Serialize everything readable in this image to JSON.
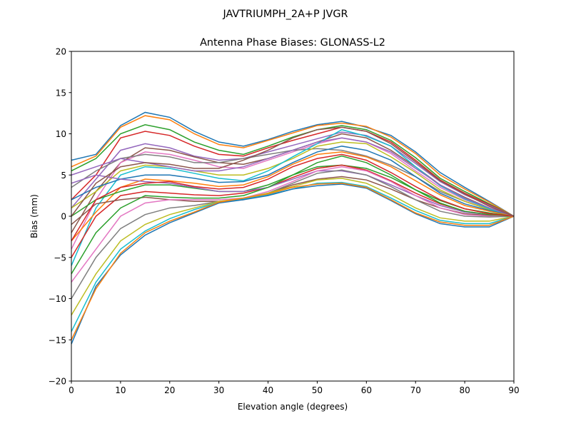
{
  "chart_data": {
    "type": "line",
    "suptitle": "JAVTRIUMPH_2A+P JVGR",
    "title": "Antenna Phase Biases: GLONASS-L2",
    "xlabel": "Elevation angle (degrees)",
    "ylabel": "Bias (mm)",
    "xlim": [
      0,
      90
    ],
    "ylim": [
      -20,
      20
    ],
    "xticks": [
      0,
      10,
      20,
      30,
      40,
      50,
      60,
      70,
      80,
      90
    ],
    "yticks": [
      -20,
      -15,
      -10,
      -5,
      0,
      5,
      10,
      15,
      20
    ],
    "ytick_labels": [
      "−20",
      "−15",
      "−10",
      "−5",
      "0",
      "5",
      "10",
      "15",
      "20"
    ],
    "grid": false,
    "legend": "none",
    "colors": [
      "#1f77b4",
      "#ff7f0e",
      "#2ca02c",
      "#d62728",
      "#9467bd",
      "#8c564b",
      "#e377c2",
      "#7f7f7f",
      "#bcbd22",
      "#17becf"
    ],
    "x": [
      0,
      5,
      10,
      15,
      20,
      25,
      30,
      35,
      40,
      45,
      50,
      55,
      60,
      65,
      70,
      75,
      80,
      85,
      90
    ],
    "series": [
      {
        "values": [
          6.8,
          7.5,
          11,
          12.6,
          12,
          10.3,
          9,
          8.5,
          9.3,
          10.3,
          11.1,
          11.5,
          10.8,
          9.8,
          7.8,
          5.3,
          3.5,
          1.8,
          0
        ]
      },
      {
        "values": [
          6,
          7.3,
          10.8,
          12.2,
          11.7,
          10,
          8.7,
          8.3,
          9.2,
          10.1,
          11,
          11.3,
          10.9,
          9.6,
          7.6,
          5,
          3.3,
          1.7,
          0
        ]
      },
      {
        "values": [
          5.5,
          7,
          10,
          11.1,
          10.5,
          9,
          8,
          7.5,
          8.5,
          9.6,
          10.5,
          11,
          10.5,
          9.2,
          7.1,
          4.6,
          3,
          1.5,
          0
        ]
      },
      {
        "values": [
          2,
          5,
          9.5,
          10.3,
          9.8,
          8.5,
          7.5,
          7.3,
          8.3,
          9.2,
          10,
          10.8,
          10.3,
          9,
          6.8,
          4.4,
          2.8,
          1.4,
          0
        ]
      },
      {
        "values": [
          1,
          4.5,
          8,
          8.8,
          8.3,
          7.3,
          6.8,
          7,
          7.8,
          8.6,
          9.4,
          10.2,
          9.8,
          8.5,
          6.4,
          4.2,
          2.6,
          1.3,
          0
        ]
      },
      {
        "values": [
          -2,
          3,
          6.5,
          8.3,
          8,
          7.2,
          6.5,
          6.3,
          7,
          8,
          9,
          10,
          9.5,
          8,
          6,
          3.8,
          2.3,
          1,
          0
        ]
      },
      {
        "values": [
          -4,
          2,
          6.5,
          7.8,
          7.5,
          6.8,
          6,
          5.8,
          6.8,
          7.8,
          8.8,
          9.5,
          9,
          7.6,
          5.5,
          3.5,
          2,
          0.9,
          0
        ]
      },
      {
        "values": [
          3.5,
          5.5,
          7,
          7.5,
          7.2,
          6.5,
          6.5,
          7,
          7.5,
          8,
          8.2,
          8,
          7.3,
          6.2,
          4.8,
          3,
          1.8,
          0.8,
          0
        ]
      },
      {
        "values": [
          1,
          3,
          5.5,
          6.2,
          6,
          5.5,
          5,
          5,
          5.8,
          7,
          8.5,
          9,
          8.8,
          7.2,
          5.3,
          3.2,
          1.8,
          0.8,
          0
        ]
      },
      {
        "values": [
          -6,
          1,
          5,
          6,
          5.8,
          5.2,
          4.6,
          4.3,
          5.5,
          7.2,
          8.8,
          10.5,
          9.7,
          8.5,
          6,
          3.7,
          2.1,
          0.9,
          0
        ]
      },
      {
        "values": [
          2,
          3.5,
          4.5,
          5,
          5,
          4.6,
          4.1,
          4.2,
          5,
          6.5,
          7.8,
          8.5,
          8,
          6.8,
          4.8,
          2.8,
          1.5,
          0.7,
          0
        ]
      },
      {
        "values": [
          -3,
          0.5,
          3.5,
          4.5,
          4.3,
          4,
          3.6,
          3.8,
          4.8,
          6.3,
          7.5,
          7.8,
          7.2,
          6,
          4.3,
          2.6,
          1.3,
          0.6,
          0
        ]
      },
      {
        "values": [
          0,
          2,
          3,
          3.8,
          3.8,
          3.4,
          3,
          3,
          3.8,
          5,
          6,
          6.2,
          5.8,
          4.7,
          3.2,
          1.9,
          0.9,
          0.4,
          0
        ]
      },
      {
        "values": [
          -5,
          0,
          2.5,
          3,
          2.8,
          2.6,
          2.5,
          2.8,
          3.5,
          4.7,
          5.8,
          6.2,
          5.6,
          4.3,
          2.8,
          1.5,
          0.6,
          0.2,
          0
        ]
      },
      {
        "values": [
          4,
          5,
          4.5,
          4.2,
          4,
          3.5,
          3,
          3,
          3.5,
          4.5,
          5.5,
          5.5,
          5,
          3.8,
          2.5,
          1.3,
          0.5,
          0.2,
          0
        ]
      },
      {
        "values": [
          -1,
          1.5,
          2,
          2.3,
          2,
          1.8,
          1.8,
          2,
          2.8,
          3.8,
          4.5,
          4.8,
          4.4,
          3.3,
          2,
          1,
          0.3,
          0.1,
          0
        ]
      },
      {
        "values": [
          -8,
          -4,
          0,
          1.6,
          2,
          2,
          2,
          2.2,
          3,
          4.2,
          5.5,
          6,
          5.5,
          4.2,
          2.5,
          1,
          0.2,
          0,
          0
        ]
      },
      {
        "values": [
          -10,
          -5,
          -1.5,
          0.2,
          1,
          1.3,
          1.8,
          2,
          2.8,
          4,
          5.2,
          5.6,
          5,
          3.6,
          2,
          0.6,
          0,
          -0.1,
          0
        ]
      },
      {
        "values": [
          -12,
          -7,
          -3,
          -1,
          0.2,
          1,
          1.8,
          2.2,
          2.8,
          3.6,
          4.4,
          4.6,
          4,
          2.6,
          1,
          -0.2,
          -0.6,
          -0.6,
          0
        ]
      },
      {
        "values": [
          -14,
          -8,
          -4,
          -1.8,
          -0.3,
          0.8,
          1.7,
          2.1,
          2.6,
          3.3,
          4,
          4.1,
          3.6,
          2.2,
          0.7,
          -0.5,
          -0.9,
          -0.9,
          0
        ]
      },
      {
        "values": [
          -15.5,
          -8.5,
          -4.7,
          -2.3,
          -0.8,
          0.4,
          1.6,
          2,
          2.5,
          3.3,
          3.7,
          3.9,
          3.4,
          1.9,
          0.3,
          -0.9,
          -1.3,
          -1.3,
          0
        ]
      },
      {
        "values": [
          -15,
          -8.8,
          -4.5,
          -2,
          -0.6,
          0.5,
          1.7,
          2.2,
          2.7,
          3.5,
          3.9,
          4,
          3.5,
          2,
          0.4,
          -0.7,
          -1.1,
          -1.1,
          0
        ]
      },
      {
        "values": [
          -7,
          -2,
          1,
          2.5,
          2.3,
          2.2,
          2.2,
          2.5,
          3.5,
          5,
          6.5,
          7.3,
          6.5,
          5,
          3.2,
          1.6,
          0.6,
          0.2,
          0
        ]
      },
      {
        "values": [
          -3,
          2,
          3.5,
          4,
          4.2,
          3.6,
          3.3,
          3.5,
          4.5,
          6,
          7,
          7.5,
          6.8,
          5.3,
          3.6,
          2,
          0.9,
          0.3,
          0
        ]
      },
      {
        "values": [
          5,
          6,
          7,
          6.5,
          6,
          5.5,
          5.5,
          6,
          7,
          8,
          9,
          9.5,
          9,
          7.8,
          5.8,
          3.8,
          2.2,
          1,
          0
        ]
      },
      {
        "values": [
          0,
          4,
          6,
          6.5,
          6.3,
          5.8,
          5.8,
          6.8,
          8,
          9.5,
          10.5,
          10.8,
          10.3,
          8.8,
          6.6,
          4.3,
          2.7,
          1.2,
          0
        ]
      }
    ]
  }
}
